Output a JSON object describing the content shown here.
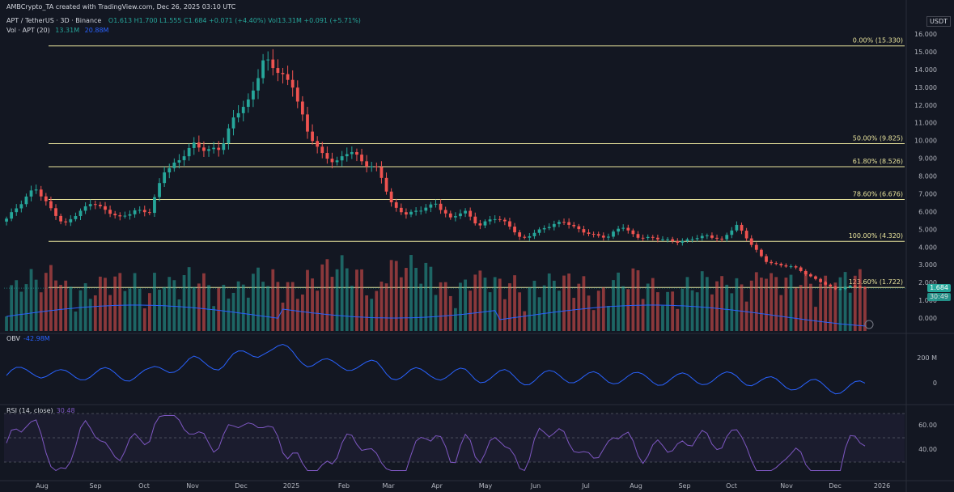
{
  "header": {
    "watermark": "AMBCrypto_TA created with TradingView.com, Dec 26, 2025 03:10 UTC",
    "symbol": "APT / TetherUS · 3D · Binance",
    "ohlc": "O1.613 H1.700 L1.555 C1.684 +0.071 (+4.40%) Vol13.31M +0.091 (+5.71%)",
    "vol_label": "Vol · APT (20)",
    "vol_value": "13.31M",
    "vol_ma": "20.88M"
  },
  "currency": "USDT",
  "price_axis": {
    "ticks": [
      "16.000",
      "15.000",
      "14.000",
      "13.000",
      "12.000",
      "11.000",
      "10.000",
      "9.000",
      "8.000",
      "7.000",
      "6.000",
      "5.000",
      "4.000",
      "3.000",
      "2.000",
      "1.000",
      "0.000"
    ]
  },
  "price_badge": "1.684",
  "volume_badge": "30:49",
  "fib_levels": [
    {
      "label": "0.00% (15.330)",
      "value": 15.33
    },
    {
      "label": "50.00% (9.825)",
      "value": 9.825
    },
    {
      "label": "61.80% (8.526)",
      "value": 8.526
    },
    {
      "label": "78.60% (6.676)",
      "value": 6.676
    },
    {
      "label": "100.00% (4.320)",
      "value": 4.32
    },
    {
      "label": "123.60% (1.722)",
      "value": 1.722
    }
  ],
  "obv": {
    "label": "OBV",
    "value": "-42.98M",
    "ticks": [
      "200 M",
      "0"
    ]
  },
  "rsi": {
    "label": "RSI (14, close)",
    "value": "30.48",
    "ticks": [
      "60.00",
      "40.00"
    ]
  },
  "time_axis": [
    "Aug",
    "Sep",
    "Oct",
    "Nov",
    "Dec",
    "2025",
    "Feb",
    "Mar",
    "Apr",
    "May",
    "Jun",
    "Jul",
    "Aug",
    "Sep",
    "Oct",
    "Nov",
    "Dec",
    "2026"
  ],
  "colors": {
    "background": "#131722",
    "up": "#26a69a",
    "down": "#ef5350",
    "fib": "#e8e39c",
    "obv": "#2962ff",
    "rsi": "#7e57c2",
    "vol_ma": "#2962ff"
  },
  "chart_data": {
    "type": "candlestick",
    "close_series": [
      5.6,
      6.4,
      7.4,
      6.3,
      5.2,
      5.9,
      6.6,
      6.0,
      5.6,
      6.1,
      6.0,
      8.2,
      8.8,
      9.9,
      9.4,
      9.5,
      11.6,
      12.3,
      14.5,
      13.9,
      13.2,
      10.5,
      9.2,
      8.8,
      9.5,
      8.6,
      8.4,
      6.3,
      5.8,
      6.1,
      6.5,
      5.6,
      6.0,
      5.2,
      5.7,
      5.3,
      4.4,
      4.9,
      5.2,
      5.4,
      5.0,
      4.7,
      4.5,
      5.2,
      4.6,
      4.5,
      4.4,
      4.3,
      4.5,
      4.6,
      4.4,
      5.3,
      4.2,
      3.2,
      3.0,
      2.9,
      2.4,
      2.0,
      1.6,
      1.8,
      1.684
    ],
    "ylim": [
      0,
      16
    ],
    "last": {
      "open": 1.613,
      "high": 1.7,
      "low": 1.555,
      "close": 1.684
    }
  }
}
